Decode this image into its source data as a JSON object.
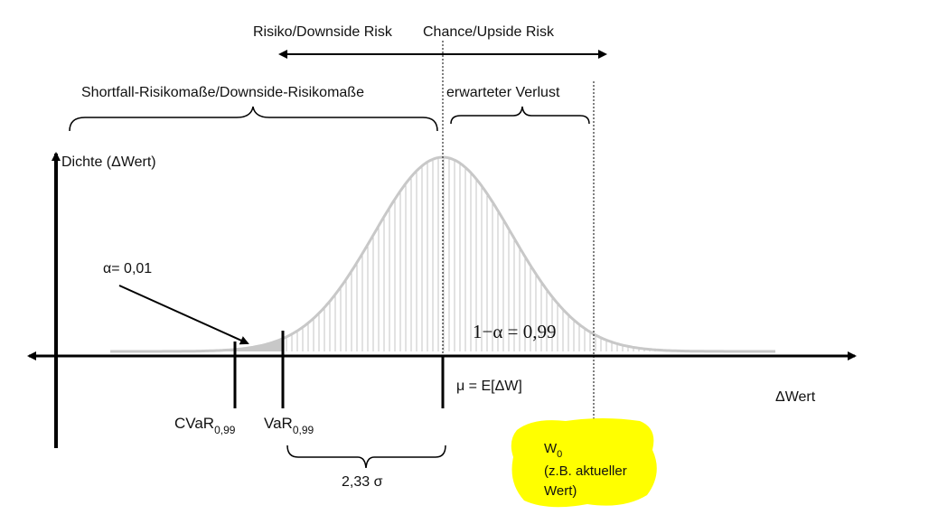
{
  "top_arrow": {
    "left_label": "Risiko/Downside Risk",
    "right_label": "Chance/Upside Risk"
  },
  "braces": {
    "left_label": "Shortfall-Risikomaße/Downside-Risikomaße",
    "right_label": "erwarteter Verlust"
  },
  "axes": {
    "y_label": "Dichte (ΔWert)",
    "x_label": "ΔWert"
  },
  "annotations": {
    "alpha": "α= 0,01",
    "one_minus_alpha": "1−α = 0,99",
    "mu": "μ = E[ΔW]",
    "cvar_main": "CVaR",
    "cvar_sub": "0,99",
    "var_main": "VaR",
    "var_sub": "0,99",
    "sigma_span": "2,33 σ"
  },
  "highlight": {
    "w_main": "W",
    "w_sub": "0",
    "line2": "(z.B. aktueller",
    "line3": "Wert)",
    "color": "#ffff00"
  },
  "colors": {
    "curve": "#c8c8c8",
    "tail_fill": "#c8c8c8",
    "hatch": "#c4c4c4",
    "ink": "#000000"
  }
}
